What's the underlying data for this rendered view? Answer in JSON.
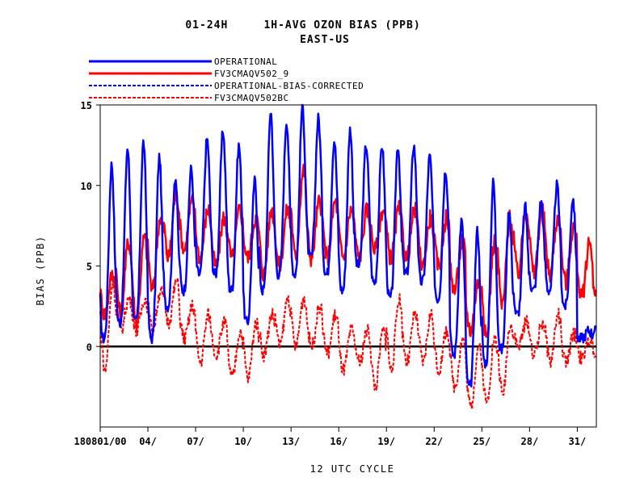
{
  "chart_data": {
    "type": "line",
    "title_line1": "01-24H     1H-AVG OZON BIAS (PPB)",
    "title_line2": "EAST-US",
    "xlabel": "12 UTC CYCLE",
    "ylabel": "BIAS (PPB)",
    "ylim": [
      -5,
      15
    ],
    "xlim": [
      1,
      32.2
    ],
    "y_ticks": [
      "15",
      "10",
      "5",
      "0"
    ],
    "x_ticks": [
      {
        "value": 1,
        "label": "180801/00"
      },
      {
        "value": 4,
        "label": "04/"
      },
      {
        "value": 7,
        "label": "07/"
      },
      {
        "value": 10,
        "label": "10/"
      },
      {
        "value": 13,
        "label": "13/"
      },
      {
        "value": 16,
        "label": "16/"
      },
      {
        "value": 19,
        "label": "19/"
      },
      {
        "value": 22,
        "label": "22/"
      },
      {
        "value": 25,
        "label": "25/"
      },
      {
        "value": 28,
        "label": "28/"
      },
      {
        "value": 31,
        "label": "31/"
      }
    ],
    "zero_line": 0,
    "legend_position": "top-left",
    "grid": false,
    "series_colors": {
      "blue": "#0000ff",
      "red": "#ff0000"
    },
    "series": [
      {
        "name": "OPERATIONAL",
        "color": "#0000ff",
        "style": "solid",
        "daily_min": [
          0.5,
          1.5,
          1.5,
          0.5,
          2.5,
          3.5,
          4.5,
          4.5,
          3.5,
          1.5,
          3.5,
          4.5,
          4.5,
          5.5,
          4.5,
          3.5,
          5.0,
          4.0,
          3.0,
          4.5,
          4.0,
          3.0,
          -0.5,
          -2.5,
          -1.0,
          -0.2,
          2.0,
          3.5,
          3.5,
          2.5,
          0.5,
          1.0
        ],
        "daily_max": [
          11.3,
          12.3,
          12.7,
          11.8,
          10.5,
          11.0,
          12.9,
          13.4,
          12.5,
          10.3,
          14.6,
          14.0,
          15.0,
          14.2,
          12.8,
          13.5,
          12.5,
          12.5,
          12.5,
          12.5,
          11.8,
          11.0,
          7.8,
          7.2,
          10.2,
          8.5,
          8.7,
          9.0,
          10.0,
          9.2,
          1.0,
          1.0
        ]
      },
      {
        "name": "FV3CMAQV502_9",
        "color": "#ff0000",
        "style": "solid",
        "daily_min": [
          2.0,
          2.0,
          1.5,
          3.5,
          5.5,
          6.0,
          5.5,
          5.0,
          5.5,
          5.5,
          4.5,
          5.0,
          5.5,
          5.5,
          5.5,
          5.5,
          5.5,
          6.0,
          5.5,
          5.5,
          5.0,
          5.0,
          3.5,
          1.0,
          0.5,
          2.5,
          4.5,
          4.5,
          4.5,
          4.0,
          3.0,
          3.0
        ],
        "daily_max": [
          4.5,
          6.5,
          6.8,
          8.0,
          9.5,
          9.0,
          8.5,
          8.0,
          8.5,
          8.0,
          8.5,
          8.5,
          11.0,
          9.0,
          9.0,
          8.5,
          8.5,
          8.5,
          8.5,
          8.5,
          8.0,
          8.0,
          6.5,
          4.0,
          6.5,
          8.0,
          8.5,
          8.5,
          8.0,
          7.5,
          6.5,
          4.0
        ]
      },
      {
        "name": "OPERATIONAL-BIAS-CORRECTED",
        "color": "#0000ff",
        "style": "dashed",
        "values": []
      },
      {
        "name": "FV3CMAQV502BC",
        "color": "#ff0000",
        "style": "dashed",
        "daily_min": [
          -1.5,
          1.0,
          1.0,
          1.0,
          1.5,
          0.5,
          -1.0,
          -0.5,
          -2.0,
          -2.0,
          -0.5,
          0.0,
          0.0,
          0.0,
          -0.5,
          -1.5,
          -1.0,
          -2.5,
          -1.5,
          -1.0,
          -1.0,
          -1.5,
          -2.5,
          -3.8,
          -3.5,
          -3.0,
          0.0,
          -0.5,
          -1.0,
          -1.0,
          -0.8,
          -1.0
        ],
        "daily_max": [
          4.0,
          3.0,
          3.0,
          3.5,
          4.0,
          2.5,
          2.0,
          1.5,
          1.0,
          1.5,
          2.0,
          3.0,
          3.0,
          2.5,
          2.0,
          1.0,
          1.0,
          1.0,
          3.0,
          2.0,
          2.0,
          1.0,
          0.5,
          0.0,
          0.5,
          1.5,
          1.5,
          1.5,
          2.0,
          0.8,
          0.5,
          0.0
        ]
      }
    ]
  }
}
